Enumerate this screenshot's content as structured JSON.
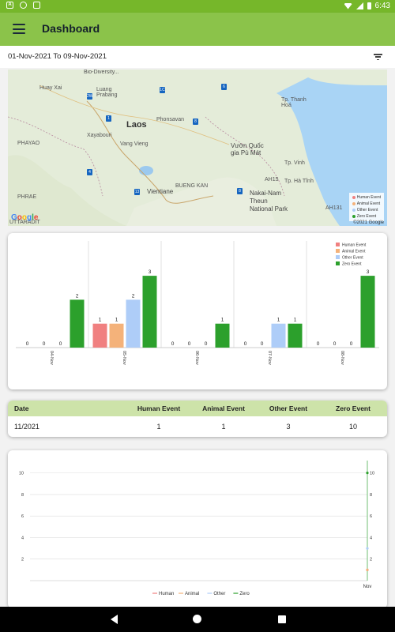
{
  "status_bar": {
    "time": "6:43",
    "left_icons": [
      "android-icon",
      "sync-icon",
      "sim-icon"
    ],
    "right_icons": [
      "wifi-icon",
      "signal-icon",
      "battery-icon"
    ]
  },
  "app_bar": {
    "title": "Dashboard",
    "menu_icon": "menu-icon"
  },
  "date_range": {
    "text": "01-Nov-2021 To 09-Nov-2021",
    "filter_icon": "filter-icon"
  },
  "map": {
    "labels": {
      "huay_xai": "Huay Xai",
      "luang_prabang": "Luang\nPrabang",
      "laos": "Laos",
      "phonsavan": "Phonsavan",
      "xayabouri": "Xayabouri",
      "vang_vieng": "Vang Vieng",
      "phayao": "PHAYAO",
      "vientiane": "Vientiane",
      "bueng_kan": "BUENG KAN",
      "phrae": "PHRAE",
      "uttaradit": "UTTARADIT",
      "bio_diversity": "Bio-Diversity...",
      "thanh_hoa": "Tp. Thanh\nHoá",
      "vuon_quoc": "Vườn Quốc\ngia Pù Mát",
      "vinh": "Tp. Vinh",
      "ha_tinh": "Tp. Hà Tĩnh",
      "nakai": "Nakai-Nam\nTheun\nNational Park",
      "ah15": "AH15",
      "ah131": "AH131"
    },
    "pins": [
      "1C",
      "2W",
      "1",
      "4",
      "13",
      "8",
      "6",
      "8"
    ],
    "legend": [
      "Human Event",
      "Animal Event",
      "Other Event",
      "Zero Event"
    ],
    "google": "Google",
    "copyright": "©2021 Google"
  },
  "colors": {
    "human": "#f08080",
    "animal": "#f4b27a",
    "other": "#aecdf8",
    "zero": "#2ca02c",
    "header_green": "#8bc34a",
    "status_green": "#76b72a"
  },
  "chart_data": [
    {
      "type": "bar",
      "categories": [
        "04-Nov",
        "05-Nov",
        "06-Nov",
        "07-Nov",
        "08-Nov"
      ],
      "series": [
        {
          "name": "Human Event",
          "values": [
            0,
            1,
            0,
            0,
            0
          ]
        },
        {
          "name": "Animal Event",
          "values": [
            0,
            1,
            0,
            0,
            0
          ]
        },
        {
          "name": "Other Event",
          "values": [
            0,
            2,
            0,
            1,
            0
          ]
        },
        {
          "name": "Zero Event",
          "values": [
            2,
            3,
            1,
            1,
            3
          ]
        }
      ],
      "title": "",
      "xlabel": "",
      "ylabel": "",
      "ylim": [
        0,
        3.3
      ],
      "legend_position": "top-right",
      "grid": false,
      "data_labels": true
    },
    {
      "type": "line",
      "x": [
        "Nov"
      ],
      "series": [
        {
          "name": "Human",
          "values": [
            1
          ]
        },
        {
          "name": "Animal",
          "values": [
            1
          ]
        },
        {
          "name": "Other",
          "values": [
            3
          ]
        },
        {
          "name": "Zero",
          "values": [
            10
          ]
        }
      ],
      "yticks": [
        2,
        4,
        6,
        8,
        10
      ],
      "ylim": [
        0,
        11
      ],
      "legend_position": "bottom",
      "grid": true
    }
  ],
  "table": {
    "headers": [
      "Date",
      "Human Event",
      "Animal Event",
      "Other Event",
      "Zero Event"
    ],
    "rows": [
      [
        "11/2021",
        "1",
        "1",
        "3",
        "10"
      ]
    ]
  },
  "nav": {
    "back": "back-icon",
    "home": "home-icon",
    "recent": "recent-apps-icon"
  }
}
